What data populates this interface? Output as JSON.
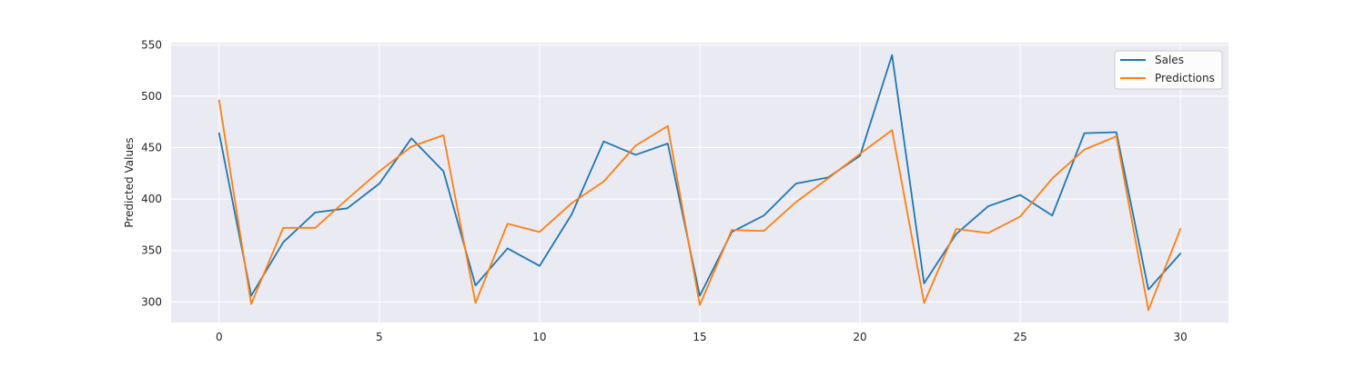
{
  "chart_data": {
    "type": "line",
    "title": "",
    "xlabel": "",
    "ylabel": "Predicted Values",
    "xlim": [
      -1.5,
      31.5
    ],
    "ylim": [
      280,
      552
    ],
    "x_ticks": [
      0,
      5,
      10,
      15,
      20,
      25,
      30
    ],
    "y_ticks": [
      300,
      350,
      400,
      450,
      500,
      550
    ],
    "grid": true,
    "legend_position": "top-right",
    "x": [
      0,
      1,
      2,
      3,
      4,
      5,
      6,
      7,
      8,
      9,
      10,
      11,
      12,
      13,
      14,
      15,
      16,
      17,
      18,
      19,
      20,
      21,
      22,
      23,
      24,
      25,
      26,
      27,
      28,
      29,
      30
    ],
    "series": [
      {
        "name": "Sales",
        "color": "#1f77b4",
        "values": [
          464,
          306,
          358,
          387,
          391,
          415,
          459,
          427,
          316,
          352,
          335,
          385,
          456,
          443,
          454,
          306,
          368,
          384,
          415,
          421,
          442,
          540,
          318,
          366,
          393,
          404,
          384,
          464,
          465,
          312,
          347
        ]
      },
      {
        "name": "Predictions",
        "color": "#ff7f0e",
        "values": [
          496,
          298,
          372,
          372,
          400,
          427,
          451,
          462,
          299,
          376,
          368,
          396,
          417,
          452,
          471,
          297,
          370,
          369,
          397,
          420,
          444,
          467,
          299,
          371,
          367,
          383,
          420,
          448,
          461,
          292,
          371
        ]
      }
    ],
    "colors": {
      "plot_background": "#eaeaf2",
      "grid": "#ffffff",
      "text": "#262626"
    }
  }
}
